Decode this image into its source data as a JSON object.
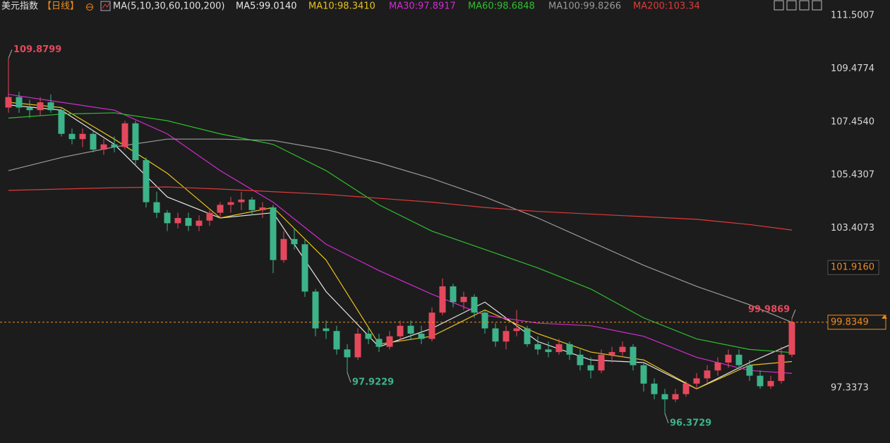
{
  "chart_data": {
    "type": "candlestick",
    "title": "美元指数",
    "period": "【日线】",
    "indicator": "MA(5,10,30,60,100,200)",
    "up_color": "#e5485c",
    "down_color": "#3db389",
    "ylim": [
      95.241,
      112.091
    ],
    "yticks": [
      111.5007,
      109.4774,
      {
        "value": 107.454,
        "label": "107.4540"
      },
      105.4307,
      103.4073,
      97.3373
    ],
    "grid": false,
    "candles": [
      [
        108.0,
        109.8799,
        107.8,
        108.4
      ],
      [
        108.4,
        108.6,
        107.8,
        108.0
      ],
      [
        108.0,
        108.3,
        107.6,
        107.9
      ],
      [
        107.9,
        108.4,
        107.7,
        108.2
      ],
      [
        108.2,
        108.5,
        107.8,
        107.9
      ],
      [
        107.9,
        108.0,
        106.9,
        107.0
      ],
      [
        107.0,
        107.2,
        106.6,
        106.8
      ],
      [
        106.8,
        107.2,
        106.5,
        107.0
      ],
      [
        107.0,
        107.1,
        106.3,
        106.4
      ],
      [
        106.4,
        106.8,
        106.2,
        106.6
      ],
      [
        106.6,
        106.9,
        106.3,
        106.5
      ],
      [
        106.5,
        107.5,
        106.4,
        107.4
      ],
      [
        107.4,
        107.5,
        105.8,
        106.0
      ],
      [
        106.0,
        106.1,
        104.2,
        104.4
      ],
      [
        104.4,
        104.8,
        103.8,
        104.0
      ],
      [
        104.0,
        104.1,
        103.3,
        103.6
      ],
      [
        103.6,
        104.0,
        103.4,
        103.8
      ],
      [
        103.8,
        104.0,
        103.3,
        103.5
      ],
      [
        103.5,
        103.9,
        103.3,
        103.7
      ],
      [
        103.7,
        104.1,
        103.5,
        104.0
      ],
      [
        104.0,
        104.4,
        103.8,
        104.3
      ],
      [
        104.3,
        104.6,
        104.0,
        104.4
      ],
      [
        104.4,
        104.8,
        104.1,
        104.5
      ],
      [
        104.5,
        104.6,
        103.9,
        104.1
      ],
      [
        104.1,
        104.4,
        103.8,
        104.2
      ],
      [
        104.2,
        104.3,
        101.7,
        102.2
      ],
      [
        102.2,
        103.3,
        102.1,
        103.0
      ],
      [
        103.0,
        103.4,
        102.6,
        102.8
      ],
      [
        102.8,
        103.0,
        100.8,
        101.0
      ],
      [
        101.0,
        101.1,
        99.3,
        99.6
      ],
      [
        99.6,
        99.9,
        99.2,
        99.5
      ],
      [
        99.5,
        99.7,
        98.6,
        98.8
      ],
      [
        98.8,
        99.0,
        97.9229,
        98.5
      ],
      [
        98.5,
        99.6,
        98.4,
        99.4
      ],
      [
        99.4,
        99.6,
        99.0,
        99.2
      ],
      [
        99.2,
        99.4,
        98.7,
        98.9
      ],
      [
        98.9,
        99.5,
        98.8,
        99.3
      ],
      [
        99.3,
        99.9,
        99.1,
        99.7
      ],
      [
        99.7,
        99.9,
        99.2,
        99.4
      ],
      [
        99.4,
        99.7,
        99.0,
        99.2
      ],
      [
        99.2,
        100.4,
        99.1,
        100.2
      ],
      [
        100.2,
        101.5,
        100.1,
        101.2
      ],
      [
        101.2,
        101.3,
        100.4,
        100.6
      ],
      [
        100.6,
        101.0,
        100.3,
        100.8
      ],
      [
        100.8,
        100.9,
        100.0,
        100.2
      ],
      [
        100.2,
        100.3,
        99.4,
        99.6
      ],
      [
        99.6,
        99.8,
        98.9,
        99.1
      ],
      [
        99.1,
        99.7,
        98.8,
        99.5
      ],
      [
        99.5,
        100.3,
        99.3,
        99.6
      ],
      [
        99.6,
        99.7,
        98.9,
        99.0
      ],
      [
        99.0,
        99.3,
        98.6,
        98.8
      ],
      [
        98.8,
        99.1,
        98.5,
        98.7
      ],
      [
        98.7,
        99.2,
        98.6,
        99.0
      ],
      [
        99.0,
        99.1,
        98.4,
        98.6
      ],
      [
        98.6,
        98.8,
        98.0,
        98.2
      ],
      [
        98.2,
        98.5,
        97.7,
        98.0
      ],
      [
        98.0,
        98.8,
        97.9,
        98.6
      ],
      [
        98.6,
        98.9,
        98.3,
        98.7
      ],
      [
        98.7,
        99.1,
        98.5,
        98.9
      ],
      [
        98.9,
        99.0,
        98.0,
        98.2
      ],
      [
        98.2,
        98.3,
        97.2,
        97.5
      ],
      [
        97.5,
        97.7,
        96.9,
        97.1
      ],
      [
        97.1,
        97.3,
        96.3729,
        96.9
      ],
      [
        96.9,
        97.3,
        96.8,
        97.1
      ],
      [
        97.1,
        97.6,
        97.0,
        97.5
      ],
      [
        97.5,
        97.9,
        97.3,
        97.7
      ],
      [
        97.7,
        98.2,
        97.5,
        98.0
      ],
      [
        98.0,
        98.5,
        97.8,
        98.3
      ],
      [
        98.3,
        98.8,
        98.1,
        98.6
      ],
      [
        98.6,
        98.8,
        98.0,
        98.2
      ],
      [
        98.2,
        98.4,
        97.6,
        97.8
      ],
      [
        97.8,
        98.0,
        97.3,
        97.4
      ],
      [
        97.4,
        97.8,
        97.3,
        97.6
      ],
      [
        97.6,
        98.9,
        97.5,
        98.6
      ],
      [
        98.6,
        99.9869,
        98.5,
        99.8349
      ]
    ],
    "ma_x": [
      0,
      5,
      10,
      15,
      20,
      25,
      30,
      35,
      40,
      45,
      50,
      55,
      60,
      65,
      70,
      74
    ],
    "series": [
      {
        "name": "MA5:99.0140",
        "color": "#e6e6e6",
        "values": [
          108.1,
          107.9,
          106.6,
          104.6,
          103.8,
          104.0,
          101.0,
          98.9,
          99.6,
          100.6,
          99.1,
          98.4,
          98.3,
          97.3,
          98.3,
          99.01
        ]
      },
      {
        "name": "MA10:98.3410",
        "color": "#e8c21a",
        "values": [
          108.2,
          108.0,
          106.8,
          105.5,
          103.8,
          104.2,
          102.2,
          99.0,
          99.3,
          100.3,
          99.4,
          98.7,
          98.4,
          97.3,
          98.2,
          98.34
        ]
      },
      {
        "name": "MA30:97.8917",
        "color": "#d42ad4",
        "values": [
          108.5,
          108.2,
          107.9,
          107.0,
          105.6,
          104.4,
          102.8,
          101.8,
          100.9,
          100.1,
          99.8,
          99.7,
          99.3,
          98.5,
          98.0,
          97.89
        ]
      },
      {
        "name": "MA60:98.6848",
        "color": "#2fbf2f",
        "values": [
          107.6,
          107.75,
          107.8,
          107.5,
          107.0,
          106.6,
          105.6,
          104.3,
          103.3,
          102.6,
          101.9,
          101.1,
          100.0,
          99.2,
          98.8,
          98.68
        ]
      },
      {
        "name": "MA100:99.8266",
        "color": "#9a9a9a",
        "values": [
          105.6,
          106.1,
          106.5,
          106.8,
          106.8,
          106.75,
          106.4,
          105.9,
          105.3,
          104.6,
          103.8,
          102.9,
          102.0,
          101.2,
          100.5,
          99.83
        ]
      },
      {
        "name": "MA200:103.34",
        "color": "#e03a3a",
        "values": [
          104.85,
          104.9,
          104.95,
          104.98,
          104.9,
          104.8,
          104.7,
          104.55,
          104.4,
          104.2,
          104.05,
          103.95,
          103.85,
          103.75,
          103.55,
          103.34
        ]
      }
    ],
    "extreme_labels": [
      109.8799,
      97.9229,
      96.3729,
      99.9869
    ],
    "last_price": 99.8349,
    "marked_level": {
      "value": 101.916,
      "label": "101.9160"
    }
  }
}
